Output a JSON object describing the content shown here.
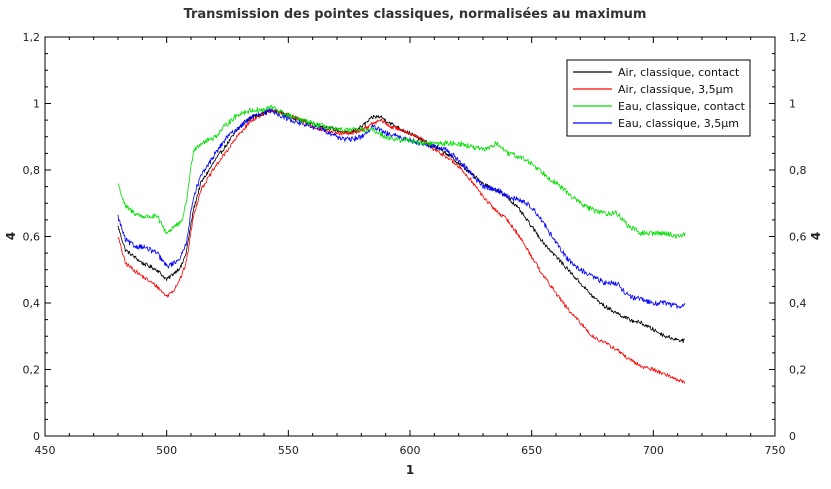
{
  "chart_data": {
    "type": "line",
    "title": "Transmission des pointes classiques, normalisées au maximum",
    "xlabel": "1",
    "ylabel": "4",
    "ylabel_right": "4",
    "xlim": [
      450,
      750
    ],
    "ylim": [
      0,
      1.2
    ],
    "x_ticks": [
      450,
      500,
      550,
      600,
      650,
      700,
      750
    ],
    "x_tick_labels": [
      "450",
      "500",
      "550",
      "600",
      "650",
      "700",
      "750"
    ],
    "y_ticks": [
      0,
      0.2,
      0.4,
      0.6,
      0.8,
      1.0,
      1.2
    ],
    "y_tick_labels": [
      "0",
      "0,2",
      "0,4",
      "0,6",
      "0,8",
      "1",
      "1,2"
    ],
    "grid": false,
    "legend_position": "top-right",
    "series": [
      {
        "name": "Air, classique, contact",
        "color": "#000000",
        "noise": 0.006,
        "x": [
          480,
          483,
          490,
          496,
          500,
          503,
          506,
          508,
          511,
          514,
          520,
          525,
          530,
          535,
          540,
          543,
          548,
          555,
          560,
          565,
          570,
          575,
          580,
          585,
          588,
          592,
          597,
          600,
          605,
          610,
          615,
          620,
          625,
          630,
          635,
          640,
          645,
          650,
          655,
          660,
          665,
          670,
          675,
          680,
          685,
          690,
          695,
          700,
          705,
          710,
          713
        ],
        "y": [
          0.63,
          0.56,
          0.52,
          0.5,
          0.47,
          0.49,
          0.51,
          0.55,
          0.68,
          0.76,
          0.83,
          0.88,
          0.93,
          0.96,
          0.97,
          0.98,
          0.97,
          0.95,
          0.94,
          0.93,
          0.92,
          0.91,
          0.93,
          0.96,
          0.96,
          0.94,
          0.92,
          0.91,
          0.89,
          0.87,
          0.85,
          0.82,
          0.79,
          0.76,
          0.74,
          0.72,
          0.68,
          0.63,
          0.58,
          0.54,
          0.5,
          0.46,
          0.42,
          0.39,
          0.37,
          0.35,
          0.34,
          0.32,
          0.3,
          0.29,
          0.285
        ]
      },
      {
        "name": "Air, classique, 3,5µm",
        "color": "#ff0000",
        "noise": 0.006,
        "x": [
          480,
          483,
          490,
          496,
          500,
          503,
          506,
          508,
          511,
          514,
          520,
          525,
          530,
          535,
          540,
          543,
          548,
          555,
          560,
          565,
          570,
          575,
          580,
          585,
          588,
          592,
          597,
          600,
          605,
          610,
          615,
          620,
          625,
          630,
          635,
          640,
          645,
          650,
          655,
          660,
          665,
          670,
          675,
          680,
          685,
          690,
          695,
          700,
          705,
          710,
          713
        ],
        "y": [
          0.6,
          0.52,
          0.48,
          0.45,
          0.42,
          0.44,
          0.48,
          0.52,
          0.66,
          0.74,
          0.81,
          0.86,
          0.91,
          0.95,
          0.97,
          0.98,
          0.97,
          0.95,
          0.93,
          0.92,
          0.91,
          0.91,
          0.92,
          0.94,
          0.95,
          0.93,
          0.92,
          0.91,
          0.89,
          0.86,
          0.84,
          0.81,
          0.77,
          0.72,
          0.68,
          0.65,
          0.6,
          0.54,
          0.48,
          0.43,
          0.38,
          0.34,
          0.3,
          0.28,
          0.26,
          0.23,
          0.21,
          0.2,
          0.185,
          0.17,
          0.16
        ]
      },
      {
        "name": "Eau, classique, contact",
        "color": "#00e000",
        "noise": 0.008,
        "x": [
          480,
          483,
          487,
          490,
          496,
          500,
          503,
          506,
          508,
          511,
          514,
          520,
          525,
          530,
          535,
          540,
          543,
          548,
          555,
          560,
          565,
          570,
          575,
          580,
          585,
          590,
          595,
          600,
          605,
          610,
          615,
          620,
          625,
          630,
          636,
          640,
          645,
          650,
          655,
          660,
          665,
          670,
          675,
          680,
          685,
          690,
          695,
          700,
          705,
          710,
          713
        ],
        "y": [
          0.76,
          0.69,
          0.67,
          0.66,
          0.66,
          0.61,
          0.63,
          0.64,
          0.7,
          0.86,
          0.88,
          0.9,
          0.94,
          0.97,
          0.98,
          0.98,
          0.99,
          0.97,
          0.95,
          0.94,
          0.93,
          0.92,
          0.92,
          0.92,
          0.92,
          0.9,
          0.89,
          0.89,
          0.88,
          0.88,
          0.88,
          0.88,
          0.87,
          0.86,
          0.88,
          0.85,
          0.84,
          0.82,
          0.79,
          0.76,
          0.73,
          0.7,
          0.68,
          0.67,
          0.67,
          0.63,
          0.61,
          0.61,
          0.61,
          0.6,
          0.61
        ]
      },
      {
        "name": "Eau, classique, 3,5µm",
        "color": "#0000ff",
        "noise": 0.008,
        "x": [
          480,
          483,
          487,
          490,
          496,
          500,
          503,
          506,
          508,
          511,
          514,
          520,
          525,
          530,
          535,
          540,
          543,
          548,
          555,
          560,
          565,
          570,
          575,
          580,
          585,
          590,
          595,
          600,
          605,
          610,
          615,
          620,
          625,
          630,
          636,
          640,
          645,
          650,
          655,
          660,
          665,
          670,
          675,
          680,
          685,
          690,
          695,
          700,
          705,
          710,
          713
        ],
        "y": [
          0.66,
          0.59,
          0.57,
          0.57,
          0.55,
          0.51,
          0.52,
          0.54,
          0.58,
          0.72,
          0.78,
          0.85,
          0.9,
          0.93,
          0.96,
          0.97,
          0.98,
          0.96,
          0.94,
          0.93,
          0.92,
          0.9,
          0.89,
          0.9,
          0.93,
          0.91,
          0.9,
          0.89,
          0.88,
          0.87,
          0.86,
          0.83,
          0.79,
          0.75,
          0.74,
          0.72,
          0.71,
          0.69,
          0.64,
          0.58,
          0.53,
          0.5,
          0.48,
          0.46,
          0.46,
          0.42,
          0.41,
          0.4,
          0.4,
          0.39,
          0.395
        ]
      }
    ]
  }
}
